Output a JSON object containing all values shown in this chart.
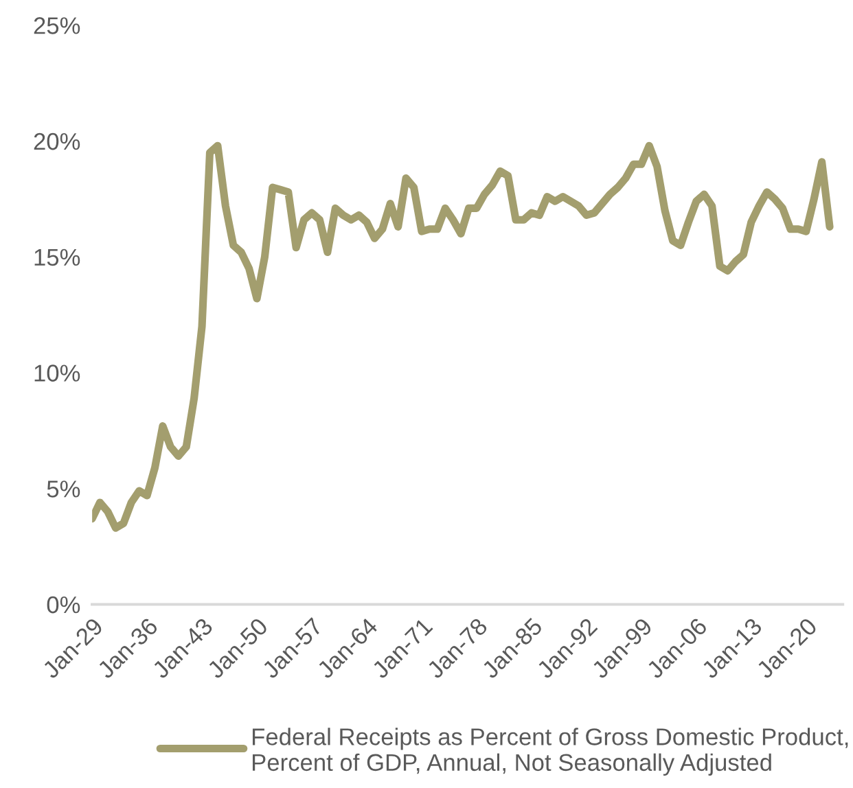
{
  "chart_data": {
    "type": "line",
    "x": [
      "1929",
      "1930",
      "1931",
      "1932",
      "1933",
      "1934",
      "1935",
      "1936",
      "1937",
      "1938",
      "1939",
      "1940",
      "1941",
      "1942",
      "1943",
      "1944",
      "1945",
      "1946",
      "1947",
      "1948",
      "1949",
      "1950",
      "1951",
      "1952",
      "1953",
      "1954",
      "1955",
      "1956",
      "1957",
      "1958",
      "1959",
      "1960",
      "1961",
      "1962",
      "1963",
      "1964",
      "1965",
      "1966",
      "1967",
      "1968",
      "1969",
      "1970",
      "1971",
      "1972",
      "1973",
      "1974",
      "1975",
      "1976",
      "1977",
      "1978",
      "1979",
      "1980",
      "1981",
      "1982",
      "1983",
      "1984",
      "1985",
      "1986",
      "1987",
      "1988",
      "1989",
      "1990",
      "1991",
      "1992",
      "1993",
      "1994",
      "1995",
      "1996",
      "1997",
      "1998",
      "1999",
      "2000",
      "2001",
      "2002",
      "2003",
      "2004",
      "2005",
      "2006",
      "2007",
      "2008",
      "2009",
      "2010",
      "2011",
      "2012",
      "2013",
      "2014",
      "2015",
      "2016",
      "2017",
      "2018",
      "2019",
      "2020",
      "2021",
      "2022",
      "2023"
    ],
    "series": [
      {
        "name": "Federal Receipts as Percent of Gross Domestic Product, Percent of GDP, Annual, Not Seasonally Adjusted",
        "color": "#a39e6e",
        "values": [
          3.7,
          4.4,
          4.0,
          3.3,
          3.5,
          4.4,
          4.9,
          4.7,
          5.9,
          7.7,
          6.8,
          6.4,
          6.8,
          8.9,
          12.0,
          19.5,
          19.8,
          17.2,
          15.5,
          15.2,
          14.5,
          13.2,
          15.0,
          18.0,
          17.9,
          17.8,
          15.4,
          16.6,
          16.9,
          16.6,
          15.2,
          17.1,
          16.8,
          16.6,
          16.8,
          16.5,
          15.8,
          16.2,
          17.3,
          16.3,
          18.4,
          18.0,
          16.1,
          16.2,
          16.2,
          17.1,
          16.6,
          16.0,
          17.1,
          17.1,
          17.7,
          18.1,
          18.7,
          18.5,
          16.6,
          16.6,
          16.9,
          16.8,
          17.6,
          17.4,
          17.6,
          17.4,
          17.2,
          16.8,
          16.9,
          17.3,
          17.7,
          18.0,
          18.4,
          19.0,
          19.0,
          19.8,
          18.9,
          17.0,
          15.7,
          15.5,
          16.5,
          17.4,
          17.7,
          17.2,
          14.6,
          14.4,
          14.8,
          15.1,
          16.5,
          17.2,
          17.8,
          17.5,
          17.1,
          16.2,
          16.2,
          16.1,
          17.5,
          19.1,
          16.3
        ]
      }
    ],
    "xlim": [
      "1929",
      "2024-09"
    ],
    "xticks": [
      {
        "value": "1929",
        "label": "Jan-29"
      },
      {
        "value": "1936",
        "label": "Jan-36"
      },
      {
        "value": "1943",
        "label": "Jan-43"
      },
      {
        "value": "1950",
        "label": "Jan-50"
      },
      {
        "value": "1957",
        "label": "Jan-57"
      },
      {
        "value": "1964",
        "label": "Jan-64"
      },
      {
        "value": "1971",
        "label": "Jan-71"
      },
      {
        "value": "1978",
        "label": "Jan-78"
      },
      {
        "value": "1985",
        "label": "Jan-85"
      },
      {
        "value": "1992",
        "label": "Jan-92"
      },
      {
        "value": "1999",
        "label": "Jan-99"
      },
      {
        "value": "2006",
        "label": "Jan-06"
      },
      {
        "value": "2013",
        "label": "Jan-13"
      },
      {
        "value": "2020",
        "label": "Jan-20"
      }
    ],
    "ylim": [
      0,
      25
    ],
    "yticks": [
      {
        "value": 0,
        "label": "0%"
      },
      {
        "value": 5,
        "label": "5%"
      },
      {
        "value": 10,
        "label": "10%"
      },
      {
        "value": 15,
        "label": "15%"
      },
      {
        "value": 20,
        "label": "20%"
      },
      {
        "value": 25,
        "label": "25%"
      }
    ],
    "grid": false,
    "legend": "bottom",
    "marker": "none",
    "line_style": "solid"
  }
}
